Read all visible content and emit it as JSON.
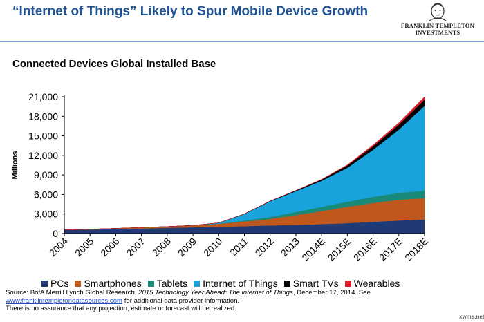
{
  "header": {
    "title": "“Internet of Things” Likely to Spur Mobile Device Growth",
    "logo_line1": "FRANKLIN TEMPLETON",
    "logo_line2": "INVESTMENTS",
    "logo_icon": "franklin-portrait-icon"
  },
  "subtitle": "Connected Devices Global Installed Base",
  "colors": {
    "pcs": "#1f3a75",
    "smartphones": "#c0581e",
    "tablets": "#1a8a78",
    "iot": "#19a3dc",
    "smart_tvs": "#000000",
    "wearables": "#d91e2a",
    "title": "#1f5496"
  },
  "chart_data": {
    "type": "area",
    "stacked": true,
    "ylabel": "Millions",
    "xlabel": "",
    "ylim": [
      0,
      21000
    ],
    "yticks": [
      0,
      3000,
      6000,
      9000,
      12000,
      15000,
      18000,
      21000
    ],
    "ytick_labels": [
      "0",
      "3,000",
      "6,000",
      "9,000",
      "12,000",
      "15,000",
      "18,000",
      "21,000"
    ],
    "categories": [
      "2004",
      "2005",
      "2006",
      "2007",
      "2008",
      "2009",
      "2010",
      "2011",
      "2012",
      "2013",
      "2014E",
      "2015E",
      "2016E",
      "2017E",
      "2018E"
    ],
    "grid": false,
    "legend_position": "bottom",
    "series": [
      {
        "name": "PCs",
        "key": "pcs",
        "values": [
          550,
          620,
          700,
          790,
          880,
          960,
          1050,
          1150,
          1250,
          1330,
          1450,
          1600,
          1800,
          2000,
          2150
        ]
      },
      {
        "name": "Smartphones",
        "key": "smartphones",
        "values": [
          30,
          60,
          100,
          150,
          200,
          300,
          450,
          700,
          1000,
          1500,
          2000,
          2500,
          2900,
          3200,
          3300
        ]
      },
      {
        "name": "Tablets",
        "key": "tablets",
        "values": [
          0,
          0,
          0,
          0,
          0,
          0,
          30,
          150,
          300,
          480,
          650,
          800,
          950,
          1050,
          1150
        ]
      },
      {
        "name": "Internet of Things",
        "key": "iot",
        "values": [
          0,
          0,
          0,
          0,
          0,
          0,
          100,
          1000,
          2400,
          3200,
          4000,
          5200,
          7200,
          9700,
          13000
        ]
      },
      {
        "name": "Smart TVs",
        "key": "smart_tvs",
        "values": [
          0,
          0,
          0,
          0,
          0,
          0,
          10,
          30,
          60,
          110,
          180,
          350,
          550,
          750,
          950
        ]
      },
      {
        "name": "Wearables",
        "key": "wearables",
        "values": [
          0,
          0,
          0,
          0,
          0,
          0,
          0,
          0,
          0,
          10,
          50,
          100,
          200,
          300,
          450
        ]
      }
    ]
  },
  "source": {
    "line1_prefix": "Source: BofA Merrill Lynch Global Research, ",
    "line1_italic": "2015 Technology Year Ahead: The internet of Things",
    "line1_suffix": ", December 17, 2014. See",
    "link_text": "www.franklintempletondatasources.com",
    "line2_suffix": " for additional data provider information.",
    "line3": "There is no assurance that any projection, estimate or forecast will be realized."
  },
  "watermark": "xwms.net"
}
